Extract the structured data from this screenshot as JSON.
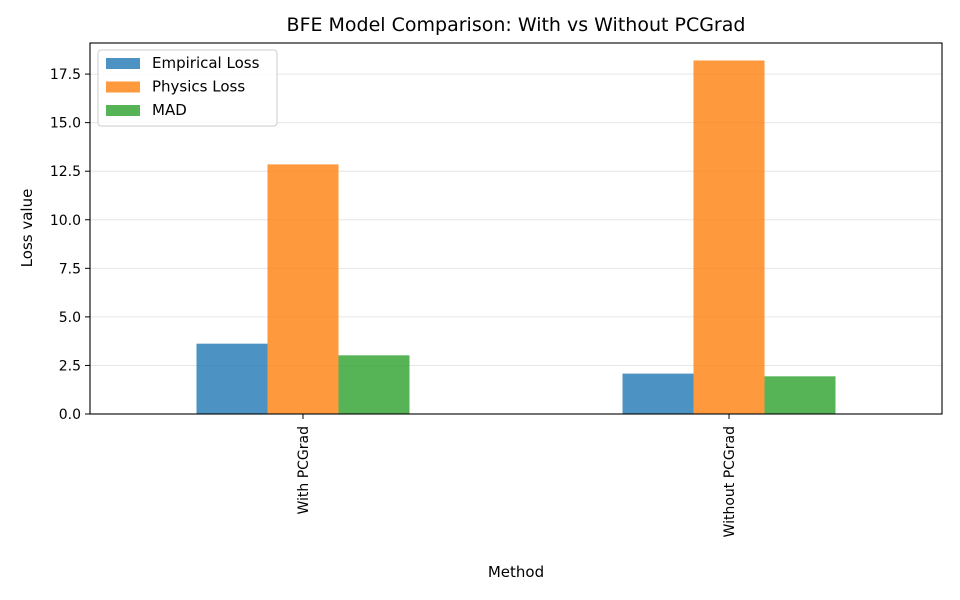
{
  "chart_data": {
    "type": "bar",
    "title": "BFE Model Comparison: With vs Without PCGrad",
    "xlabel": "Method",
    "ylabel": "Loss value",
    "categories": [
      "With PCGrad",
      "Without PCGrad"
    ],
    "series": [
      {
        "name": "Empirical Loss",
        "values": [
          3.62,
          2.08
        ],
        "color": "#1f77b4"
      },
      {
        "name": "Physics Loss",
        "values": [
          12.85,
          18.2
        ],
        "color": "#ff7f0e"
      },
      {
        "name": "MAD",
        "values": [
          3.02,
          1.94
        ],
        "color": "#2ca02c"
      }
    ],
    "ylim": [
      0,
      19.1
    ],
    "yticks": [
      "0.0",
      "2.5",
      "5.0",
      "7.5",
      "10.0",
      "12.5",
      "15.0",
      "17.5"
    ],
    "grid": "y",
    "legend_position": "top-left"
  }
}
